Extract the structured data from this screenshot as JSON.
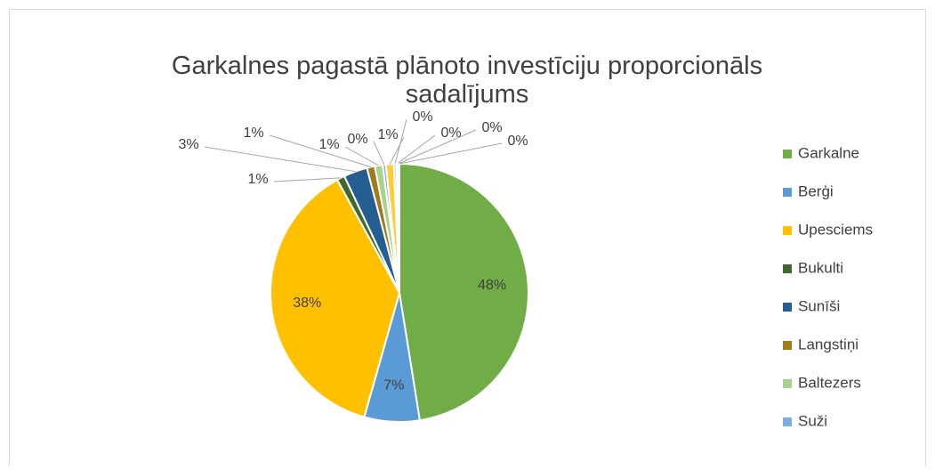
{
  "chart_data": {
    "type": "pie",
    "title": "Garkalnes pagastā plānoto investīciju proporcionāls sadalījums",
    "categories": [
      "Garkalne",
      "Berģi",
      "Upesciems",
      "Bukulti",
      "Sunīši",
      "Langstiņi",
      "Baltezers",
      "Suži",
      null,
      null,
      null,
      null,
      null
    ],
    "values": [
      48,
      7,
      38,
      1,
      3,
      1,
      1,
      0.4,
      1,
      0.3,
      0.2,
      0.1,
      0.1
    ],
    "value_labels": [
      "48%",
      "7%",
      "38%",
      "1%",
      "3%",
      "1%",
      "1%",
      "0%",
      "1%",
      "0%",
      "0%",
      "0%",
      "0%"
    ],
    "colors": [
      "#70ad47",
      "#5b9bd5",
      "#ffc000",
      "#43682b",
      "#255e91",
      "#9e7c19",
      "#a9d18e",
      "#7cafdd",
      "#ffcd33",
      "#8faadc",
      "#d4b36b",
      "#c5e0b4",
      "#bdd7ee"
    ],
    "legend": "right"
  }
}
